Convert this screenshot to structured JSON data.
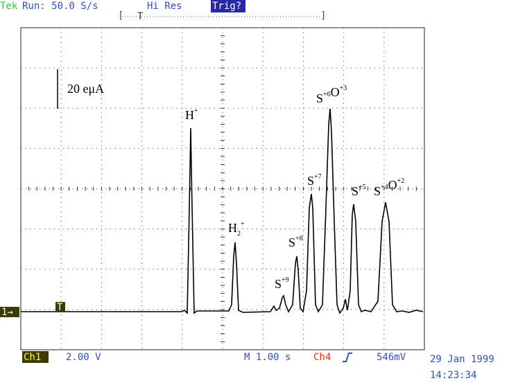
{
  "header": {
    "brand": "Tek",
    "acquisition": "Run: 50.0 S/s",
    "mode": "Hi Res",
    "trigger_status": "Trig?",
    "trigger_marker": "T"
  },
  "scale_label": "20 eμA",
  "channel_marker": "1→",
  "peaks": [
    {
      "parts": [
        {
          "base": "H",
          "sup": "+"
        }
      ]
    },
    {
      "parts": [
        {
          "base": "H",
          "sub": "2",
          "sup": "+"
        }
      ]
    },
    {
      "parts": [
        {
          "base": "S",
          "sup": "+9"
        }
      ]
    },
    {
      "parts": [
        {
          "base": "S",
          "sup": "+8"
        }
      ]
    },
    {
      "parts": [
        {
          "base": "S",
          "sup": "+7"
        }
      ]
    },
    {
      "parts": [
        {
          "base": "S",
          "sup": "+6"
        },
        {
          "base": "O",
          "sup": "+3"
        }
      ]
    },
    {
      "parts": [
        {
          "base": "S",
          "sup": "+5"
        }
      ]
    },
    {
      "parts": [
        {
          "base": "S",
          "sup": "+4"
        },
        {
          "base": "O",
          "sup": "+2"
        }
      ]
    }
  ],
  "footer": {
    "channel": "Ch1",
    "channel_scale": "2.00 V",
    "timebase": "M 1.00 s",
    "trigger_source": "Ch4",
    "trigger_level": "546mV",
    "date": "29 Jan 1999",
    "time": "14:23:34"
  }
}
